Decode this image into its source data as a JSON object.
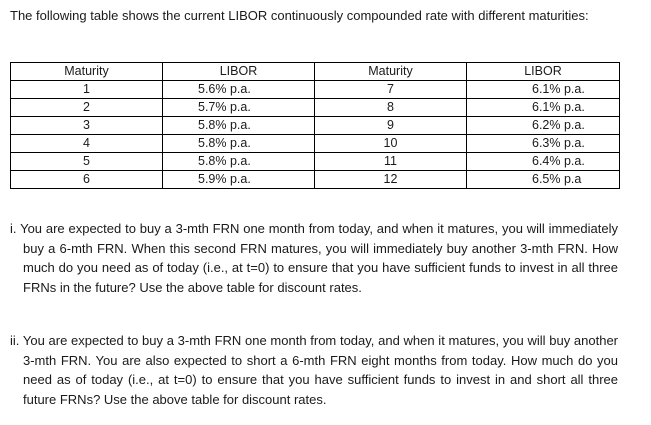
{
  "intro": "The following table shows the current LIBOR continuously compounded rate with different maturities:",
  "table": {
    "headers": [
      "Maturity",
      "LIBOR",
      "Maturity",
      "LIBOR"
    ],
    "rows": [
      [
        "1",
        "5.6% p.a.",
        "7",
        "6.1% p.a."
      ],
      [
        "2",
        "5.7% p.a.",
        "8",
        "6.1% p.a."
      ],
      [
        "3",
        "5.8% p.a.",
        "9",
        "6.2% p.a."
      ],
      [
        "4",
        "5.8% p.a.",
        "10",
        "6.3% p.a."
      ],
      [
        "5",
        "5.8% p.a.",
        "11",
        "6.4% p.a."
      ],
      [
        "6",
        "5.9% p.a.",
        "12",
        "6.5% p.a"
      ]
    ]
  },
  "questions": [
    {
      "text": "i. You are expected to buy a 3-mth FRN one month from today, and when it matures, you will immediately buy a 6-mth FRN. When this second FRN matures, you will immediately buy another 3-mth FRN. How much do you need as of today (i.e., at t=0) to ensure that you have sufficient funds to invest in all three FRNs in the future? Use the above table for discount rates."
    },
    {
      "text": "ii. You are expected to buy a 3-mth FRN one month from today, and when it matures, you will buy another 3-mth FRN. You are also expected to short a 6-mth FRN eight months from today. How much do you need as of today (i.e., at t=0) to ensure that you have sufficient funds to invest in and short all three future FRNs? Use the above table for discount rates."
    }
  ]
}
